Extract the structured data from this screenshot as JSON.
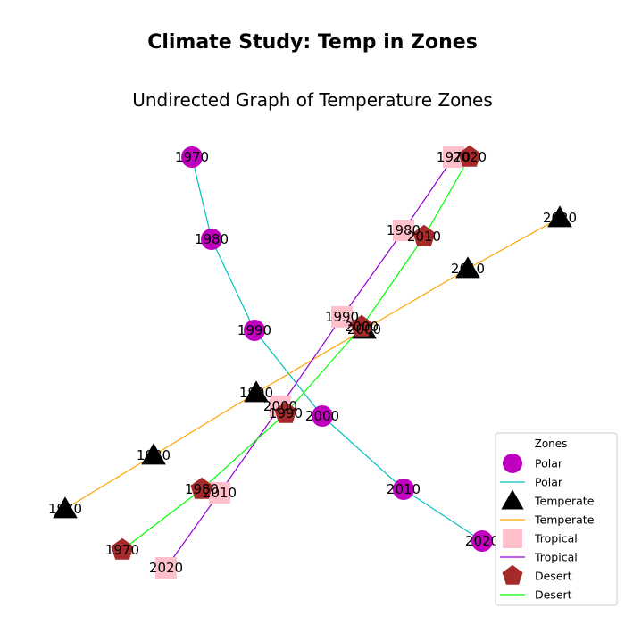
{
  "title": "Climate Study: Temp in Zones",
  "subtitle": "Undirected Graph of Temperature Zones",
  "legend": {
    "title": "Zones",
    "entries": [
      {
        "label": "Polar",
        "kind": "marker",
        "zone": "Polar"
      },
      {
        "label": "Polar",
        "kind": "line",
        "zone": "Polar"
      },
      {
        "label": "Temperate",
        "kind": "marker",
        "zone": "Temperate"
      },
      {
        "label": "Temperate",
        "kind": "line",
        "zone": "Temperate"
      },
      {
        "label": "Tropical",
        "kind": "marker",
        "zone": "Tropical"
      },
      {
        "label": "Tropical",
        "kind": "line",
        "zone": "Tropical"
      },
      {
        "label": "Desert",
        "kind": "marker",
        "zone": "Desert"
      },
      {
        "label": "Desert",
        "kind": "line",
        "zone": "Desert"
      }
    ]
  },
  "zones": [
    {
      "name": "Polar",
      "shape": "circle",
      "node_color": "#bf00bf",
      "edge_color": "#00bfbf",
      "years": [
        "1970",
        "1980",
        "1990",
        "2000",
        "2010",
        "2020"
      ]
    },
    {
      "name": "Temperate",
      "shape": "triangle",
      "node_color": "#000000",
      "edge_color": "#ffa500",
      "years": [
        "1970",
        "1980",
        "1990",
        "2000",
        "2010",
        "2020"
      ]
    },
    {
      "name": "Tropical",
      "shape": "square",
      "node_color": "#ffc0cb",
      "edge_color": "#9400d3",
      "years": [
        "1970",
        "1980",
        "1990",
        "2000",
        "2010",
        "2020"
      ]
    },
    {
      "name": "Desert",
      "shape": "pentagon",
      "node_color": "#a52a2a",
      "edge_color": "#00ff00",
      "years": [
        "1970",
        "1980",
        "1990",
        "2000",
        "2010",
        "2020"
      ]
    }
  ]
}
